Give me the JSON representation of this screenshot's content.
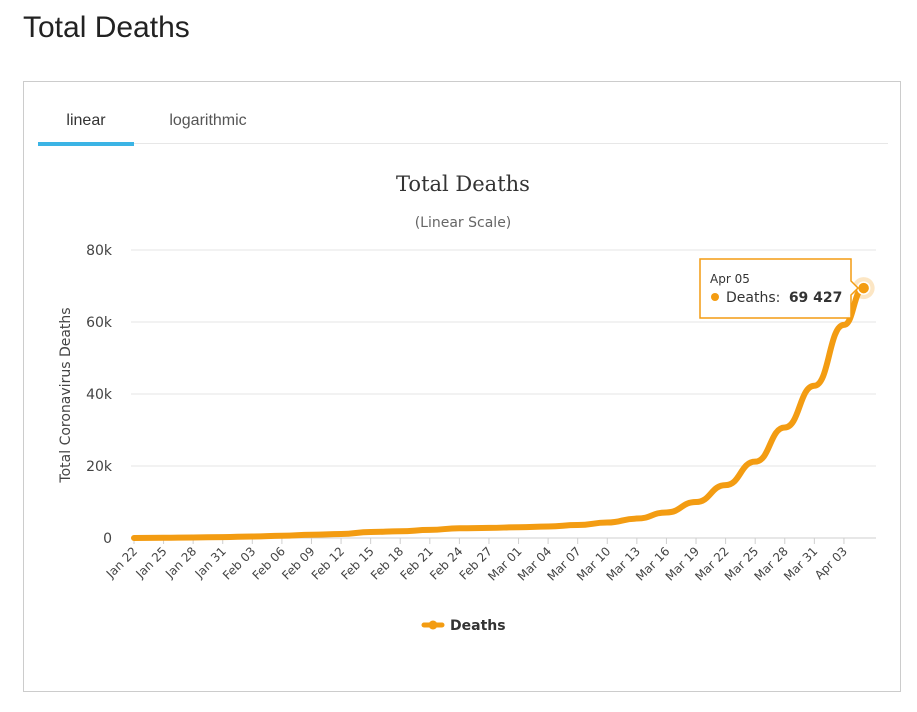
{
  "page": {
    "title": "Total Deaths"
  },
  "tabs": [
    {
      "label": "linear",
      "active": true
    },
    {
      "label": "logarithmic",
      "active": false
    }
  ],
  "colors": {
    "series": "#f39c12",
    "tab_underline": "#3bb4e5",
    "grid": "#e6e6e6"
  },
  "chart_data": {
    "type": "line",
    "title": "Total Deaths",
    "subtitle": "(Linear Scale)",
    "ylabel": "Total Coronavirus Deaths",
    "xlabel": "",
    "ylim": [
      0,
      80000
    ],
    "y_ticks": [
      "0",
      "20k",
      "40k",
      "60k",
      "80k"
    ],
    "x_tick_labels": [
      "Jan 22",
      "Jan 25",
      "Jan 28",
      "Jan 31",
      "Feb 03",
      "Feb 06",
      "Feb 09",
      "Feb 12",
      "Feb 15",
      "Feb 18",
      "Feb 21",
      "Feb 24",
      "Feb 27",
      "Mar 01",
      "Mar 04",
      "Mar 07",
      "Mar 10",
      "Mar 13",
      "Mar 16",
      "Mar 19",
      "Mar 22",
      "Mar 25",
      "Mar 28",
      "Mar 31",
      "Apr 03"
    ],
    "grid": true,
    "legend_position": "bottom-center",
    "series": [
      {
        "name": "Deaths",
        "x": [
          "Jan 22",
          "Jan 25",
          "Jan 28",
          "Jan 31",
          "Feb 03",
          "Feb 06",
          "Feb 09",
          "Feb 12",
          "Feb 15",
          "Feb 18",
          "Feb 21",
          "Feb 24",
          "Feb 27",
          "Mar 01",
          "Mar 04",
          "Mar 07",
          "Mar 10",
          "Mar 13",
          "Mar 16",
          "Mar 19",
          "Mar 22",
          "Mar 25",
          "Mar 28",
          "Mar 31",
          "Apr 03",
          "Apr 05"
        ],
        "values": [
          17,
          56,
          132,
          259,
          427,
          638,
          906,
          1115,
          1669,
          1873,
          2250,
          2707,
          2810,
          2990,
          3200,
          3600,
          4300,
          5400,
          7100,
          10000,
          14700,
          21200,
          30700,
          42300,
          59200,
          69427
        ]
      }
    ],
    "tooltip": {
      "date": "Apr 05",
      "label": "Deaths:",
      "value": "69 427"
    }
  }
}
